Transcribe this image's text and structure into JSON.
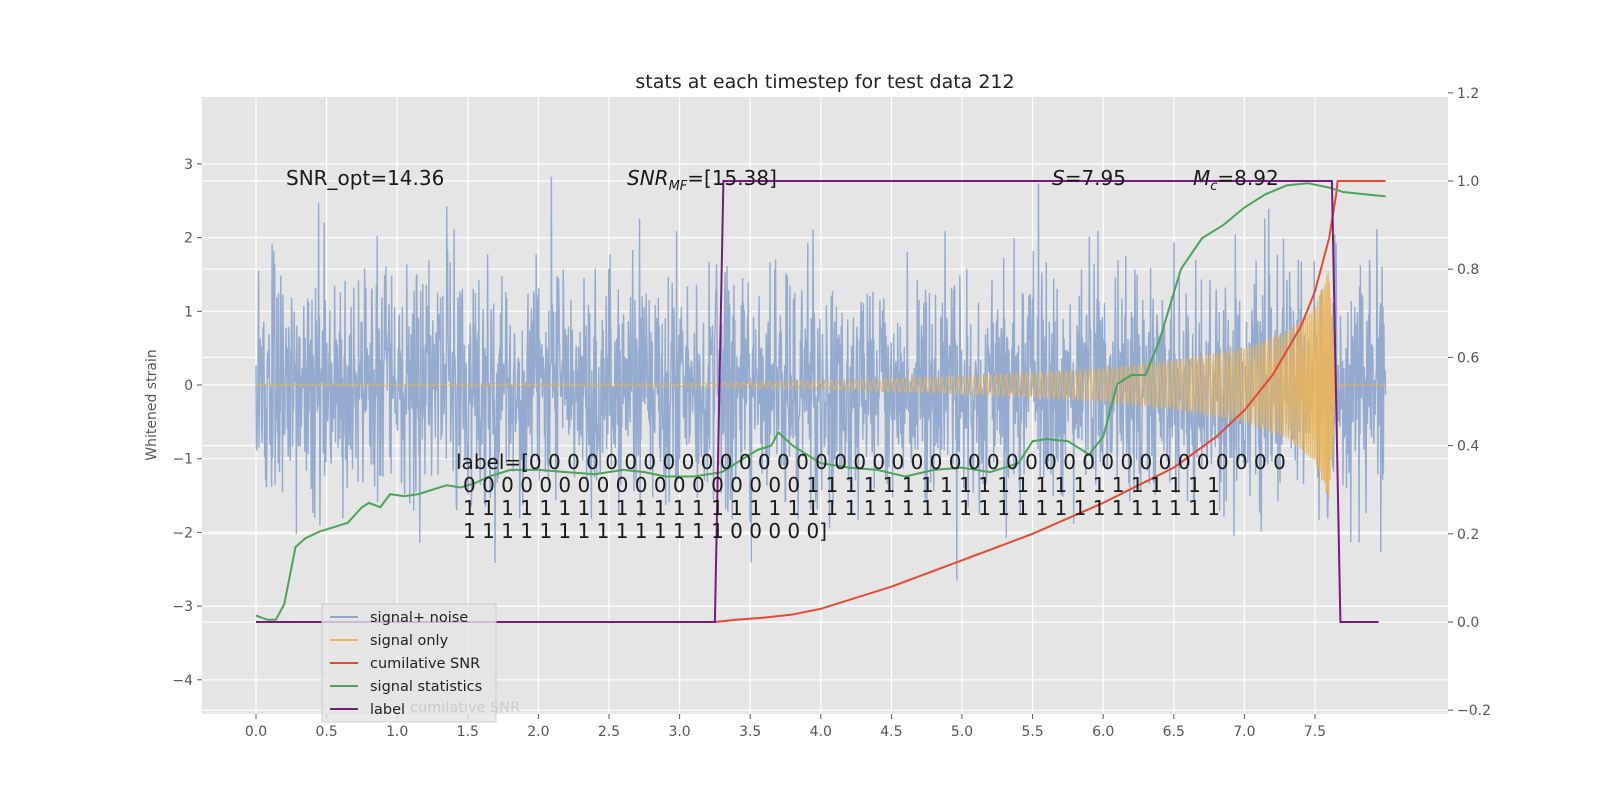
{
  "chart_data": {
    "type": "line",
    "title": "stats at each timestep for test data 212",
    "ylabel": "Whitened strain",
    "xlim": [
      -0.4,
      8.25
    ],
    "ylim_left": [
      -4.4,
      3.9
    ],
    "ylim_right": [
      -0.2,
      1.2
    ],
    "xticks": [
      "0.0",
      "0.5",
      "1.0",
      "1.5",
      "2.0",
      "2.5",
      "3.0",
      "3.5",
      "4.0",
      "4.5",
      "5.0",
      "5.5",
      "6.0",
      "6.5",
      "7.0",
      "7.5"
    ],
    "yticks_left": [
      "3",
      "2",
      "1",
      "0",
      "−1",
      "−2",
      "−3",
      "−4"
    ],
    "yticks_right": [
      "1.2",
      "1.0",
      "0.8",
      "0.6",
      "0.4",
      "0.2",
      "0.0",
      "−0.2"
    ],
    "grid": true,
    "legend_position": "lower-left",
    "annotations": {
      "snr_opt": "SNR_opt=14.36",
      "snr_mf_main": "SNR",
      "snr_mf_sub": "MF",
      "snr_mf_rest": "=[15.38]",
      "s_main": "S",
      "s_rest": "=7.95",
      "mc_main": "M",
      "mc_sub": "c",
      "mc_rest": "=8.92",
      "label_line1": "label=[0 0 0 0 0 0 0 0 0 0 0 0 0 0 0 0 0 0 0 0 0 0 0 0 0 0 0 0 0 0 0 0 0 0 0 0 0 0 0 0",
      "label_line2": "0 0 0 0 0 0 0 0 0 0 0 0 0 0 0 0 0 0 1 1 1 1 1 1 1 1 1 1 1 1 1 1 1 1 1 1 1 1 1 1",
      "label_line3": "1 1 1 1 1 1 1 1 1 1 1 1 1 1 1 1 1 1 1 1 1 1 1 1 1 1 1 1 1 1 1 1 1 1 1 1 1 1 1 1",
      "label_line4": "1 1 1 1 1 1 1 1 1 1 1 1 1 1 0 0 0 0 0]",
      "hidden_legend_text": "cumilative SNR"
    },
    "series": [
      {
        "name": "signal+ noise",
        "axis": "left",
        "color": "#8fa7cc",
        "noise_sigma": 0.75,
        "x_range": [
          0.0,
          8.0
        ]
      },
      {
        "name": "signal only",
        "axis": "left",
        "color": "#e8b45a",
        "envelope": {
          "x": [
            0.0,
            3.0,
            4.0,
            5.0,
            6.0,
            6.5,
            7.0,
            7.3,
            7.5,
            7.6,
            7.65,
            7.7,
            8.0
          ],
          "amp": [
            0.01,
            0.02,
            0.06,
            0.12,
            0.22,
            0.33,
            0.5,
            0.72,
            1.05,
            1.6,
            0.02,
            0.0,
            0.0
          ]
        }
      },
      {
        "name": "cumilative SNR",
        "axis": "right",
        "color": "#e24a33",
        "x": [
          0.0,
          3.25,
          3.4,
          3.6,
          3.8,
          4.0,
          4.5,
          5.0,
          5.5,
          6.0,
          6.5,
          6.8,
          7.0,
          7.2,
          7.4,
          7.5,
          7.6,
          7.65,
          7.66,
          8.0
        ],
        "y": [
          0.0,
          0.0,
          0.005,
          0.01,
          0.017,
          0.03,
          0.08,
          0.14,
          0.2,
          0.27,
          0.35,
          0.42,
          0.48,
          0.56,
          0.67,
          0.75,
          0.87,
          0.97,
          1.0,
          1.0
        ]
      },
      {
        "name": "signal statistics",
        "axis": "right",
        "color": "#4ca35a",
        "x": [
          0.0,
          0.08,
          0.14,
          0.2,
          0.28,
          0.35,
          0.45,
          0.55,
          0.65,
          0.75,
          0.8,
          0.88,
          0.95,
          1.05,
          1.15,
          1.25,
          1.35,
          1.45,
          1.55,
          1.65,
          1.8,
          2.0,
          2.2,
          2.4,
          2.6,
          2.75,
          2.9,
          3.1,
          3.3,
          3.45,
          3.55,
          3.65,
          3.7,
          3.8,
          4.0,
          4.2,
          4.4,
          4.6,
          4.8,
          5.0,
          5.2,
          5.4,
          5.5,
          5.6,
          5.75,
          5.9,
          6.0,
          6.1,
          6.2,
          6.3,
          6.4,
          6.55,
          6.7,
          6.85,
          7.0,
          7.15,
          7.3,
          7.45,
          7.6,
          7.7,
          7.85,
          8.0
        ],
        "y": [
          0.015,
          0.005,
          0.005,
          0.04,
          0.17,
          0.19,
          0.205,
          0.215,
          0.225,
          0.26,
          0.27,
          0.26,
          0.29,
          0.285,
          0.29,
          0.3,
          0.31,
          0.305,
          0.315,
          0.33,
          0.345,
          0.345,
          0.34,
          0.335,
          0.345,
          0.34,
          0.33,
          0.33,
          0.34,
          0.37,
          0.39,
          0.4,
          0.43,
          0.4,
          0.36,
          0.35,
          0.345,
          0.33,
          0.345,
          0.35,
          0.34,
          0.36,
          0.41,
          0.415,
          0.41,
          0.38,
          0.42,
          0.54,
          0.56,
          0.56,
          0.64,
          0.8,
          0.87,
          0.9,
          0.94,
          0.97,
          0.99,
          0.995,
          0.985,
          0.975,
          0.97,
          0.965
        ]
      },
      {
        "name": "label",
        "axis": "right",
        "color": "#7b1a7e",
        "x": [
          0.0,
          3.25,
          3.31,
          7.62,
          7.68,
          7.95
        ],
        "y": [
          0.0,
          0.0,
          1.0,
          1.0,
          0.0,
          0.0
        ]
      }
    ]
  }
}
